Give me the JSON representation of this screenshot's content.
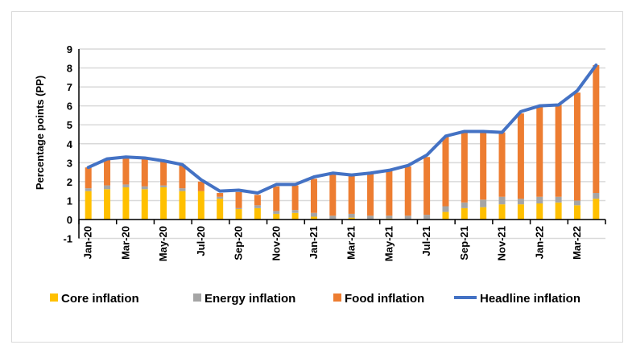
{
  "chart_data": {
    "type": "bar",
    "stacked": true,
    "ylabel": "Percentage points (PP)",
    "xlabel": "",
    "ylim": [
      -1,
      9
    ],
    "yticks": [
      -1,
      0,
      1,
      2,
      3,
      4,
      5,
      6,
      7,
      8,
      9
    ],
    "grid": true,
    "legend_position": "bottom",
    "categories": [
      "Jan-20",
      "Feb-20",
      "Mar-20",
      "Apr-20",
      "May-20",
      "Jun-20",
      "Jul-20",
      "Aug-20",
      "Sep-20",
      "Oct-20",
      "Nov-20",
      "Dec-20",
      "Jan-21",
      "Feb-21",
      "Mar-21",
      "Apr-21",
      "May-21",
      "Jun-21",
      "Jul-21",
      "Aug-21",
      "Sep-21",
      "Oct-21",
      "Nov-21",
      "Dec-21",
      "Jan-22",
      "Feb-22",
      "Mar-22",
      "Apr-22"
    ],
    "tick_labels": [
      "Jan-20",
      "Mar-20",
      "May-20",
      "Jul-20",
      "Sep-20",
      "Nov-20",
      "Jan-21",
      "Mar-21",
      "May-21",
      "Jul-21",
      "Sep-21",
      "Nov-21",
      "Jan-22",
      "Mar-22"
    ],
    "series": [
      {
        "name": "Core inflation",
        "kind": "bar",
        "color": "#ffc000",
        "values": [
          1.5,
          1.6,
          1.7,
          1.6,
          1.7,
          1.5,
          1.5,
          1.1,
          0.55,
          0.6,
          0.3,
          0.35,
          0.15,
          0,
          0.1,
          0,
          0.05,
          0,
          0,
          0.4,
          0.6,
          0.65,
          0.8,
          0.8,
          0.85,
          0.9,
          0.75,
          1.1
        ]
      },
      {
        "name": "Energy inflation",
        "kind": "bar",
        "color": "#a5a5a5",
        "values": [
          0.15,
          0.2,
          0.15,
          0.15,
          0.1,
          0.15,
          0,
          0.1,
          0.05,
          0.15,
          0.15,
          0.15,
          0.2,
          0.2,
          0.2,
          0.2,
          0.15,
          0.2,
          0.25,
          0.3,
          0.3,
          0.4,
          0.4,
          0.3,
          0.35,
          0.3,
          0.25,
          0.3
        ]
      },
      {
        "name": "Food inflation",
        "kind": "bar",
        "color": "#ed7d31",
        "values": [
          1.1,
          1.4,
          1.45,
          1.5,
          1.3,
          1.25,
          0.5,
          0.2,
          0.85,
          0.55,
          1.3,
          1.3,
          1.8,
          2.2,
          2.0,
          2.25,
          2.35,
          2.6,
          3.05,
          3.65,
          3.75,
          3.6,
          3.4,
          4.5,
          4.8,
          4.85,
          5.7,
          6.75
        ]
      },
      {
        "name": "Headline inflation",
        "kind": "line",
        "color": "#4472c4",
        "values": [
          2.75,
          3.2,
          3.3,
          3.25,
          3.1,
          2.9,
          2.1,
          1.5,
          1.55,
          1.4,
          1.85,
          1.85,
          2.25,
          2.45,
          2.35,
          2.45,
          2.6,
          2.85,
          3.4,
          4.4,
          4.65,
          4.65,
          4.6,
          5.7,
          6.0,
          6.05,
          6.8,
          8.15
        ]
      }
    ]
  }
}
